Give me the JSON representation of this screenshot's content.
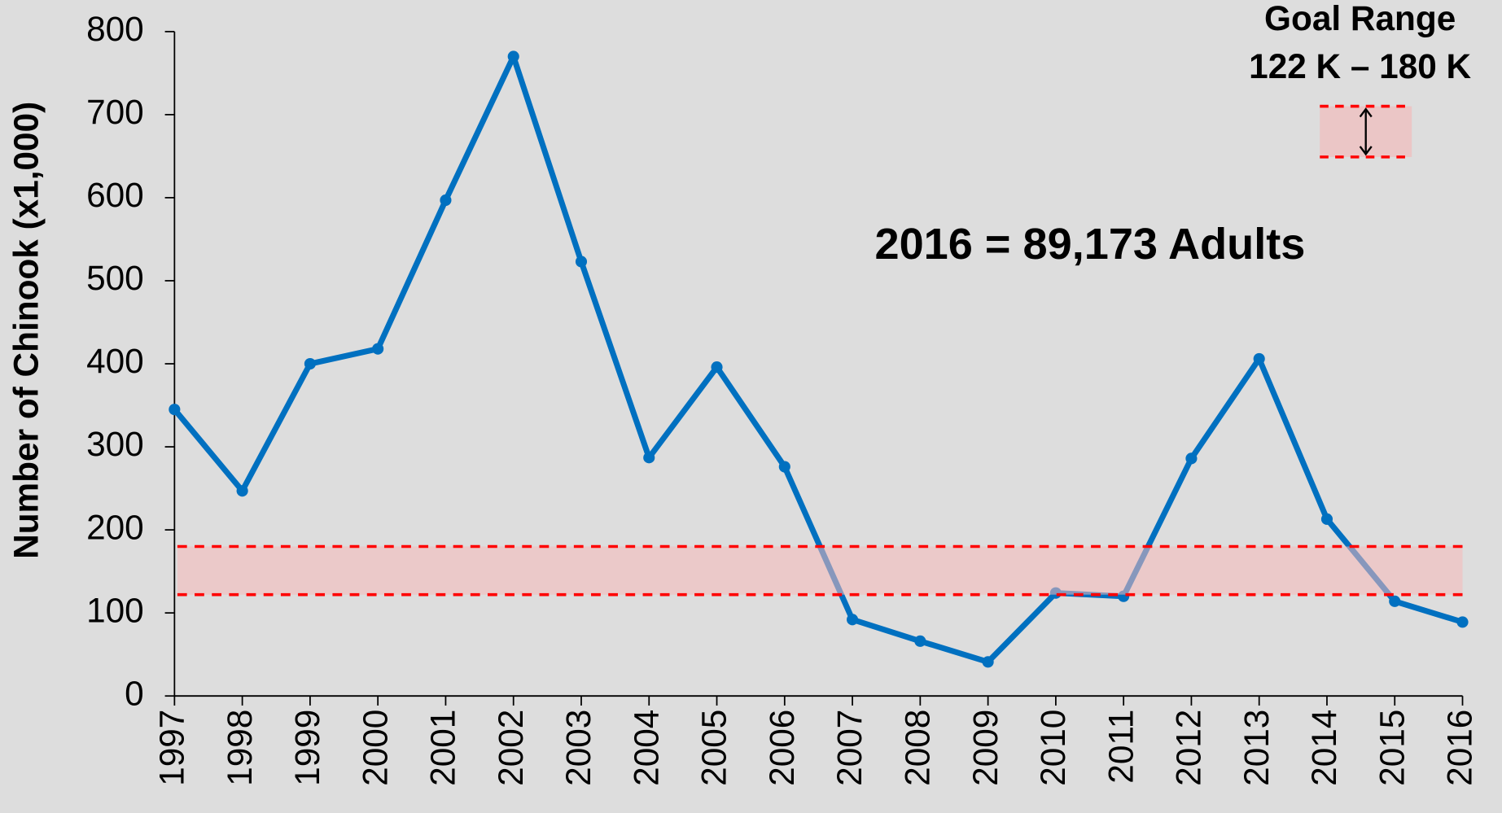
{
  "chart_data": {
    "type": "line",
    "y_axis_label": "Number of Chinook (x1,000)",
    "categories": [
      "1997",
      "1998",
      "1999",
      "2000",
      "2001",
      "2002",
      "2003",
      "2004",
      "2005",
      "2006",
      "2007",
      "2008",
      "2009",
      "2010",
      "2011",
      "2012",
      "2013",
      "2014",
      "2015",
      "2016"
    ],
    "series": [
      {
        "name": "Chinook",
        "color": "#0070c0",
        "values": [
          345,
          247,
          400,
          418,
          597,
          770,
          523,
          287,
          396,
          276,
          92,
          66,
          41,
          124,
          120,
          286,
          406,
          213,
          114,
          89
        ]
      }
    ],
    "ylim": [
      0,
      800
    ],
    "yticks": [
      0,
      100,
      200,
      300,
      400,
      500,
      600,
      700,
      800
    ],
    "goal_range": {
      "low": 122,
      "high": 180,
      "color": "#ff0000",
      "title": "Goal Range",
      "label": "122 K – 180 K"
    },
    "annotation": "2016 = 89,173 Adults"
  }
}
